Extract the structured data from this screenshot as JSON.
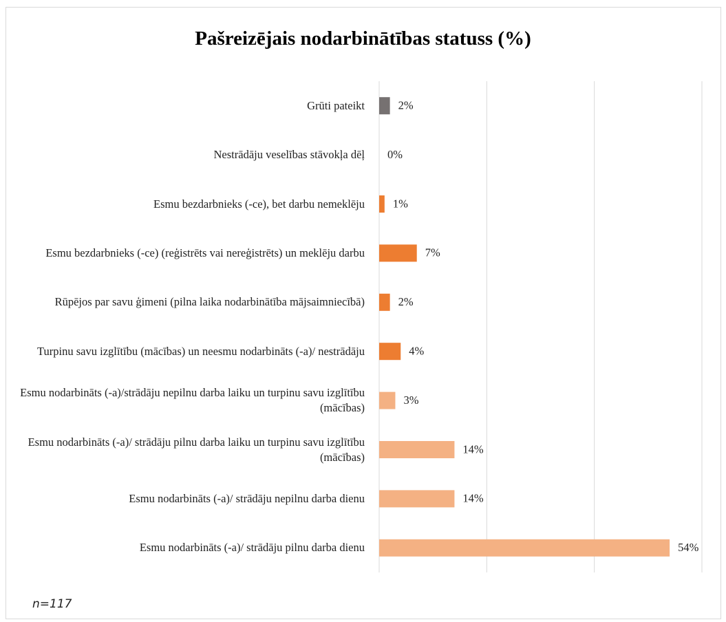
{
  "chart_data": {
    "type": "barh",
    "title": "Pašreizējais nodarbinātības statuss (%)",
    "categories": [
      "Grūti pateikt",
      "Nestrādāju veselības stāvokļa dēļ",
      "Esmu bezdarbnieks (-ce), bet darbu nemeklēju",
      "Esmu bezdarbnieks (-ce) (reģistrēts vai nereģistrēts) un meklēju darbu",
      "Rūpējos par savu ģimeni (pilna laika nodarbinātība mājsaimniecībā)",
      "Turpinu savu izglītību (mācības) un neesmu nodarbināts (-a)/ nestrādāju",
      "Esmu nodarbināts (-a)/strādāju nepilnu darba laiku un turpinu savu izglītību (mācības)",
      "Esmu nodarbināts (-a)/ strādāju pilnu darba laiku un turpinu savu izglītību (mācības)",
      "Esmu nodarbināts (-a)/ strādāju nepilnu darba dienu",
      "Esmu nodarbināts (-a)/ strādāju pilnu darba dienu"
    ],
    "values": [
      2,
      0,
      1,
      7,
      2,
      4,
      3,
      14,
      14,
      54
    ],
    "value_labels": [
      "2%",
      "0%",
      "1%",
      "7%",
      "2%",
      "4%",
      "3%",
      "14%",
      "14%",
      "54%"
    ],
    "colors": [
      "#767171",
      "#ed7d31",
      "#ed7d31",
      "#ed7d31",
      "#ed7d31",
      "#ed7d31",
      "#f4b183",
      "#f4b183",
      "#f4b183",
      "#f4b183"
    ],
    "xlim": [
      0,
      60
    ],
    "xticks": [
      0,
      20,
      40,
      60
    ],
    "grid": true,
    "note": "n=117"
  }
}
